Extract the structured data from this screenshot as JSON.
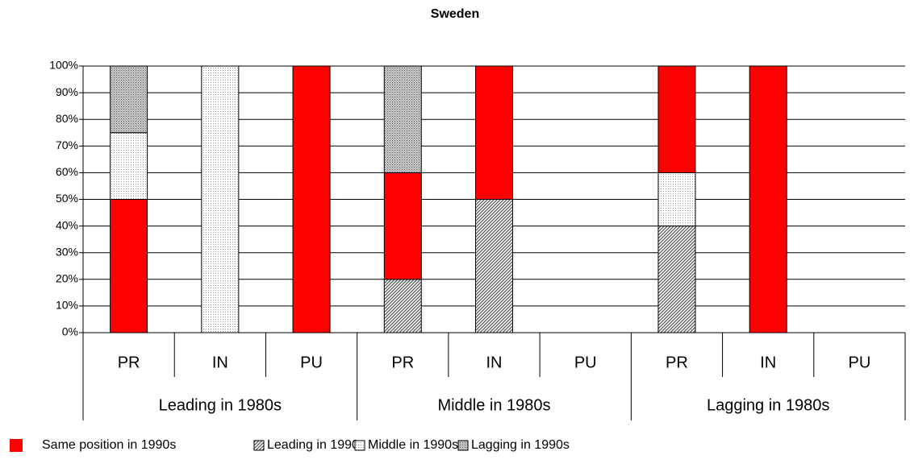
{
  "chart_data": {
    "type": "stacked-bar",
    "title": "Sweden",
    "categories": [
      "PR",
      "IN",
      "PU",
      "PR",
      "IN",
      "PU",
      "PR",
      "IN",
      "PU"
    ],
    "groups": [
      "Leading in 1980s",
      "Middle in 1980s",
      "Lagging in 1980s"
    ],
    "series": [
      {
        "name": "Same position in 1990s",
        "color": "#ff0000",
        "pattern": "solid",
        "values": [
          50,
          0,
          100,
          40,
          50,
          0,
          40,
          100,
          0
        ]
      },
      {
        "name": "Leading in 1990s",
        "color": "#808080",
        "pattern": "diagonal",
        "values": [
          0,
          0,
          0,
          20,
          50,
          0,
          40,
          0,
          0
        ]
      },
      {
        "name": "Middle in 1990s",
        "color": "#c0c0c0",
        "pattern": "dots",
        "values": [
          25,
          100,
          0,
          0,
          0,
          0,
          20,
          0,
          0
        ]
      },
      {
        "name": "Lagging in 1990s",
        "color": "#909090",
        "pattern": "grid",
        "values": [
          25,
          0,
          0,
          40,
          0,
          0,
          0,
          0,
          0
        ]
      }
    ],
    "ylim": [
      0,
      100
    ],
    "yticks": [
      {
        "value": 0,
        "label": "0%"
      },
      {
        "value": 10,
        "label": "10%"
      },
      {
        "value": 20,
        "label": "20%"
      },
      {
        "value": 30,
        "label": "30%"
      },
      {
        "value": 40,
        "label": "40%"
      },
      {
        "value": 50,
        "label": "50%"
      },
      {
        "value": 60,
        "label": "60%"
      },
      {
        "value": 70,
        "label": "70%"
      },
      {
        "value": 80,
        "label": "80%"
      },
      {
        "value": 90,
        "label": "90%"
      },
      {
        "value": 100,
        "label": "100%"
      }
    ],
    "grid": true
  }
}
